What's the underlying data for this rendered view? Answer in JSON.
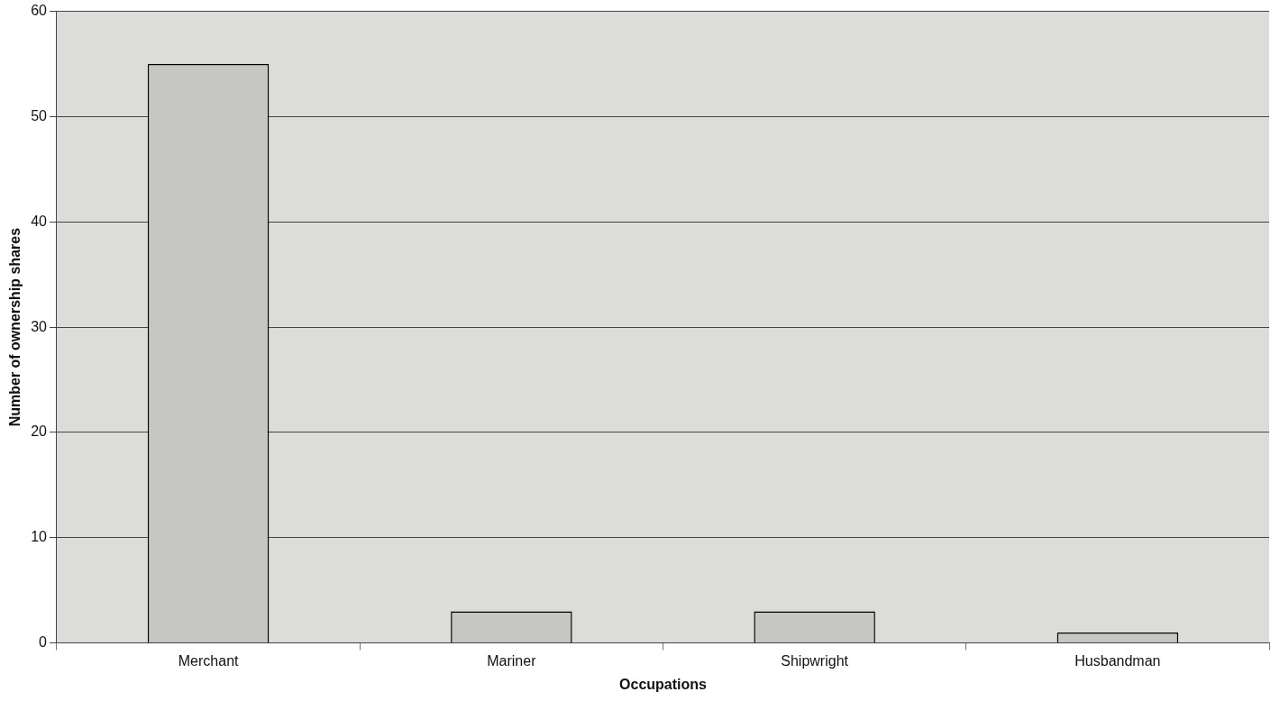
{
  "chart_data": {
    "type": "bar",
    "xlabel": "Occupations",
    "ylabel": "Number of ownership shares",
    "categories": [
      "Merchant",
      "Mariner",
      "Shipwright",
      "Husbandman"
    ],
    "values": [
      55,
      3,
      3,
      1
    ],
    "color": "#c6c7c5",
    "ylim": [
      0,
      60
    ],
    "yticks": [
      0,
      10,
      20,
      30,
      40,
      50,
      60
    ],
    "grid": "y"
  }
}
